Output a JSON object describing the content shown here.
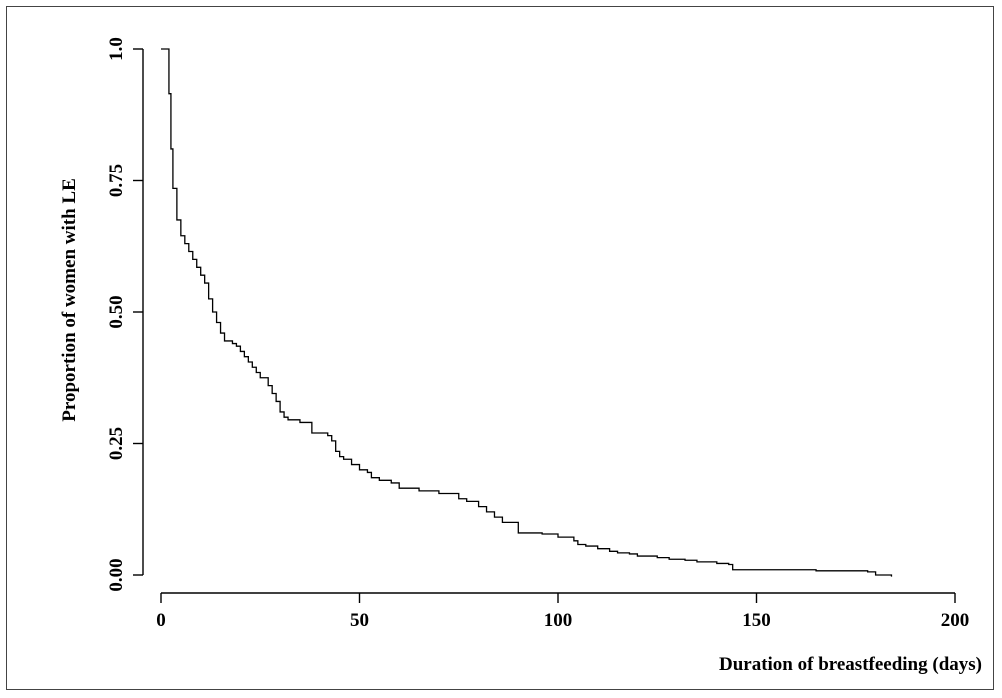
{
  "chart_data": {
    "type": "line",
    "title": "",
    "xlabel": "Duration of breastfeeding (days)",
    "ylabel": "Proportion of women with LE",
    "xlim": [
      0,
      200
    ],
    "ylim": [
      0,
      1
    ],
    "x_ticks": [
      0,
      50,
      100,
      150,
      200
    ],
    "x_tick_labels": [
      "0",
      "50",
      "100",
      "150",
      "200"
    ],
    "y_ticks": [
      0,
      0.25,
      0.5,
      0.75,
      1.0
    ],
    "y_tick_labels": [
      "0.00",
      "0.25",
      "0.50",
      "0.75",
      "1.0"
    ],
    "grid": false,
    "step": true,
    "series": [
      {
        "x": [
          0,
          2,
          2.5,
          3,
          4,
          5,
          6,
          7,
          8,
          9,
          10,
          11,
          12,
          13,
          14,
          15,
          16,
          18,
          19,
          20,
          21,
          22,
          23,
          24,
          25,
          27,
          28,
          29,
          30,
          31,
          32,
          35,
          38,
          42,
          43,
          44,
          45,
          46,
          48,
          50,
          52,
          53,
          55,
          58,
          60,
          65,
          70,
          75,
          77,
          80,
          82,
          84,
          86,
          90,
          96,
          100,
          104,
          105,
          107,
          110,
          113,
          115,
          118,
          120,
          125,
          128,
          132,
          135,
          140,
          143,
          144,
          165,
          178,
          180,
          184
        ],
        "y": [
          1.0,
          0.915,
          0.81,
          0.735,
          0.675,
          0.645,
          0.63,
          0.615,
          0.6,
          0.585,
          0.57,
          0.555,
          0.525,
          0.5,
          0.48,
          0.46,
          0.445,
          0.44,
          0.435,
          0.425,
          0.415,
          0.405,
          0.395,
          0.385,
          0.375,
          0.36,
          0.345,
          0.33,
          0.31,
          0.3,
          0.295,
          0.29,
          0.27,
          0.265,
          0.255,
          0.235,
          0.225,
          0.22,
          0.21,
          0.2,
          0.195,
          0.185,
          0.18,
          0.175,
          0.165,
          0.16,
          0.155,
          0.145,
          0.14,
          0.13,
          0.12,
          0.11,
          0.1,
          0.08,
          0.078,
          0.072,
          0.065,
          0.058,
          0.055,
          0.05,
          0.045,
          0.042,
          0.04,
          0.036,
          0.033,
          0.03,
          0.028,
          0.025,
          0.022,
          0.02,
          0.01,
          0.008,
          0.006,
          0.0,
          -0.003
        ]
      }
    ]
  }
}
